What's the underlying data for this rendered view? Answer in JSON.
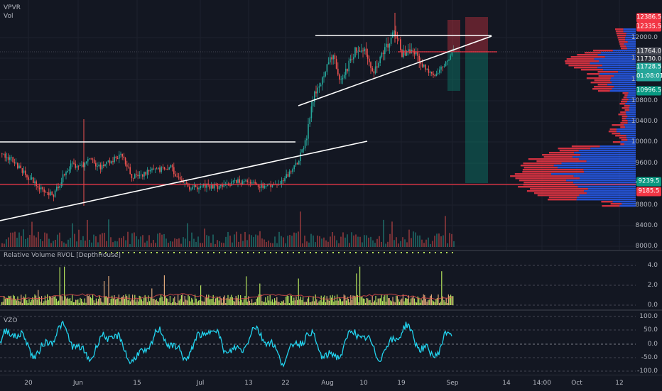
{
  "legend": {
    "indicator": "VPVR",
    "volume": "Vol"
  },
  "rvol_legend": "Relative Volume RVOL [DepthHouse]",
  "vzo_legend": "VZO",
  "main_axis": [
    "12000.0",
    "11600.0",
    "11200.0",
    "10800.0",
    "10400.0",
    "10000.0",
    "9600.0",
    "9200.0",
    "8800.0",
    "8400.0",
    "8000.0"
  ],
  "main_tags": [
    {
      "text": "12386.5",
      "color": "#f23645"
    },
    {
      "text": "12335.5",
      "color": "#f23645"
    },
    {
      "text": "11764.0",
      "color": "#434651"
    },
    {
      "text": "11730.0",
      "color": "#2a2e39"
    },
    {
      "text": "11728.5",
      "color": "#26a69a"
    },
    {
      "text": "01:08:01",
      "color": "#26a69a"
    },
    {
      "text": "10996.5",
      "color": "#089981"
    },
    {
      "text": "9239.5",
      "color": "#089981"
    },
    {
      "text": "9185.5",
      "color": "#f23645"
    }
  ],
  "rvol_axis": [
    "4.0",
    "2.0",
    "0.0"
  ],
  "vzo_axis": [
    "100.0",
    "50.0",
    "0.0",
    "-50.0",
    "-100.0"
  ],
  "time_axis": [
    "20",
    "Jun",
    "15",
    "Jul",
    "13",
    "22",
    "Aug",
    "10",
    "19",
    "Sep",
    "14",
    "14:00",
    "Oct",
    "12"
  ],
  "colors": {
    "bg": "#131722",
    "up": "#26a69a",
    "down": "#ef5350",
    "vzo": "#22d3ee",
    "rvol_bar": "#b5e35c",
    "profile_up": "#2962ff",
    "profile_down": "#f23645"
  }
}
